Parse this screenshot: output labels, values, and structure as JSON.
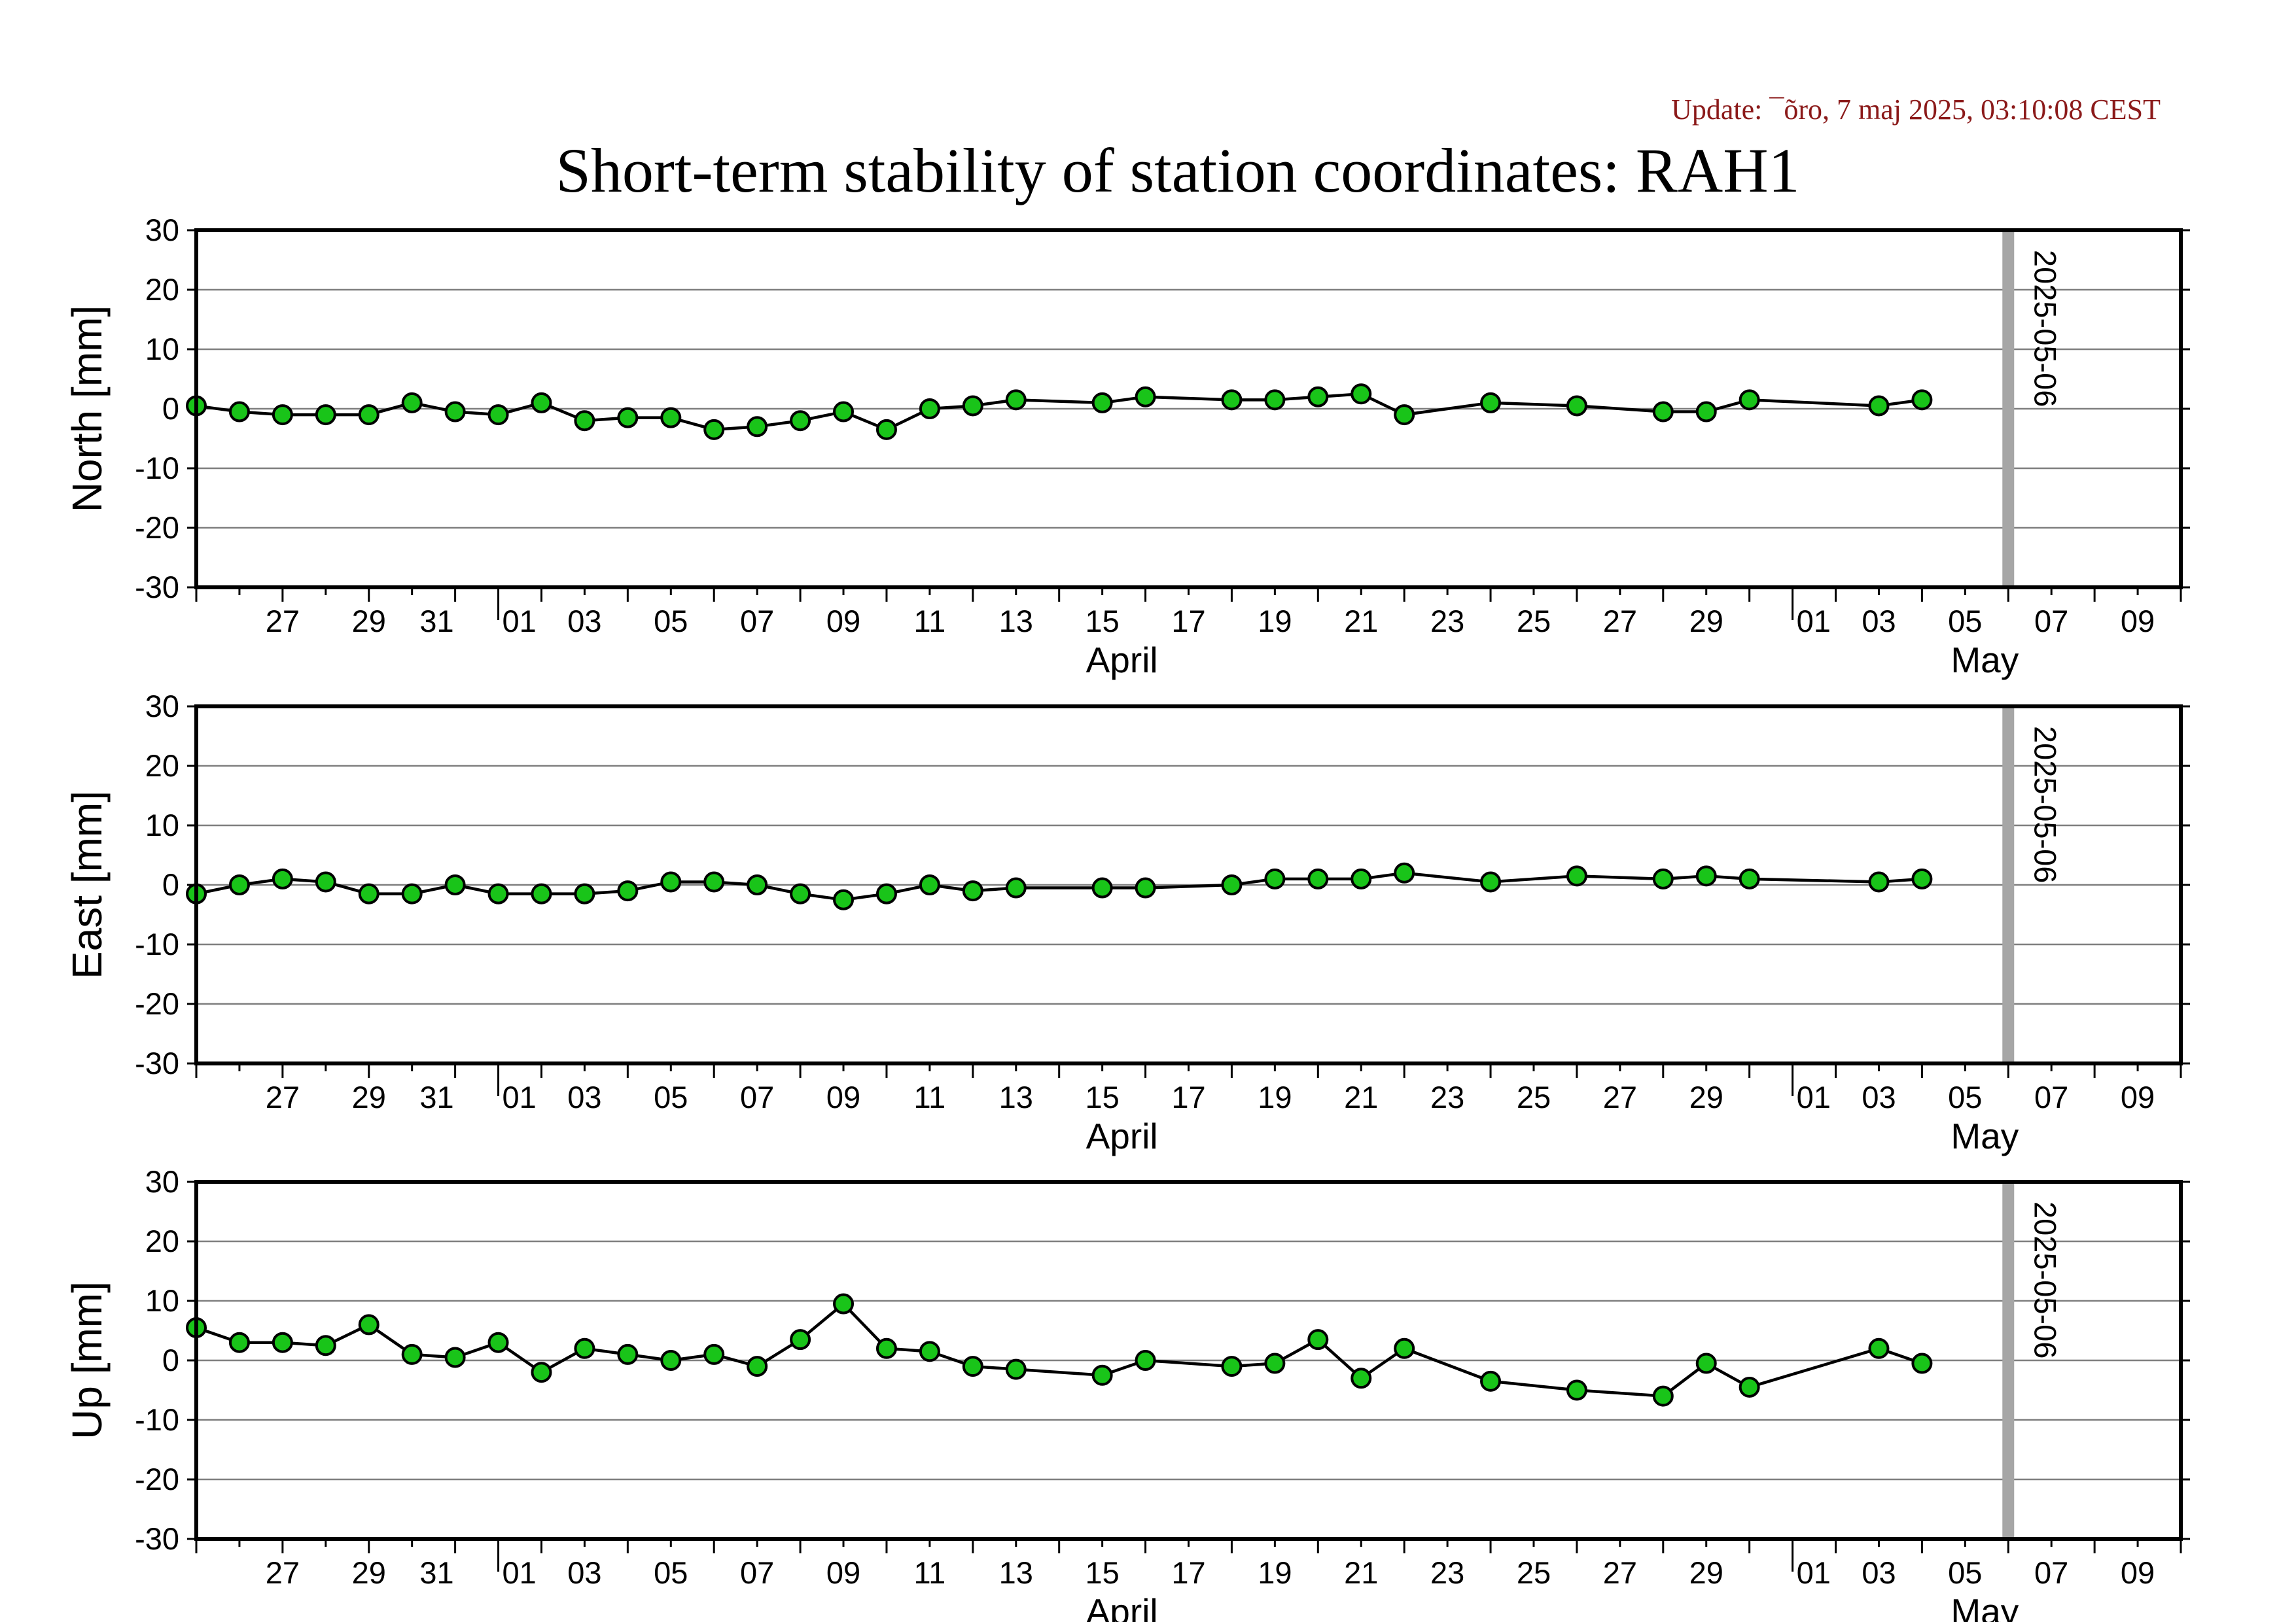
{
  "update_text": "Update: ¯õro, 7 maj 2025, 03:10:08 CEST",
  "title": "Short-term stability of station coordinates: RAH1",
  "colors": {
    "marker_fill": "#19c419",
    "marker_stroke": "#000000",
    "line": "#000000",
    "grid": "#7f7f7f",
    "reference_line": "#a6a6a6",
    "update_text": "#8b1a1a"
  },
  "chart_data": [
    {
      "type": "line",
      "ylabel": "North [mm]",
      "ylim": [
        -30,
        30
      ],
      "yticks": [
        30,
        20,
        10,
        0,
        -10,
        -20,
        -30
      ],
      "xlim": [
        "2025-03-25",
        "2025-05-10"
      ],
      "x_tick_labels": [
        "27",
        "29",
        "31",
        "01",
        "03",
        "05",
        "07",
        "09",
        "11",
        "13",
        "15",
        "17",
        "19",
        "21",
        "23",
        "25",
        "27",
        "29",
        "01",
        "03",
        "05",
        "07",
        "09"
      ],
      "month_labels": [
        "April",
        "May"
      ],
      "reference_line": {
        "date": "2025-05-06",
        "label": "2025-05-06"
      },
      "grid": true,
      "series": [
        {
          "x": [
            "2025-03-25",
            "2025-03-26",
            "2025-03-27",
            "2025-03-28",
            "2025-03-29",
            "2025-03-30",
            "2025-03-31",
            "2025-04-01",
            "2025-04-02",
            "2025-04-03",
            "2025-04-04",
            "2025-04-05",
            "2025-04-06",
            "2025-04-07",
            "2025-04-08",
            "2025-04-09",
            "2025-04-10",
            "2025-04-11",
            "2025-04-12",
            "2025-04-13",
            "2025-04-15",
            "2025-04-16",
            "2025-04-18",
            "2025-04-19",
            "2025-04-20",
            "2025-04-21",
            "2025-04-22",
            "2025-04-24",
            "2025-04-26",
            "2025-04-28",
            "2025-04-29",
            "2025-04-30",
            "2025-05-03",
            "2025-05-04"
          ],
          "values": [
            0.5,
            -0.5,
            -1.0,
            -1.0,
            -1.0,
            1.0,
            -0.5,
            -1.0,
            1.0,
            -2.0,
            -1.5,
            -1.5,
            -3.5,
            -3.0,
            -2.0,
            -0.5,
            -3.5,
            0.0,
            0.5,
            1.5,
            1.0,
            2.0,
            1.5,
            1.5,
            2.0,
            2.5,
            -1.0,
            1.0,
            0.5,
            -0.5,
            -0.5,
            1.5,
            0.5,
            1.5
          ]
        }
      ]
    },
    {
      "type": "line",
      "ylabel": "East [mm]",
      "ylim": [
        -30,
        30
      ],
      "yticks": [
        30,
        20,
        10,
        0,
        -10,
        -20,
        -30
      ],
      "xlim": [
        "2025-03-25",
        "2025-05-10"
      ],
      "x_tick_labels": [
        "27",
        "29",
        "31",
        "01",
        "03",
        "05",
        "07",
        "09",
        "11",
        "13",
        "15",
        "17",
        "19",
        "21",
        "23",
        "25",
        "27",
        "29",
        "01",
        "03",
        "05",
        "07",
        "09"
      ],
      "month_labels": [
        "April",
        "May"
      ],
      "reference_line": {
        "date": "2025-05-06",
        "label": "2025-05-06"
      },
      "grid": true,
      "series": [
        {
          "x": [
            "2025-03-25",
            "2025-03-26",
            "2025-03-27",
            "2025-03-28",
            "2025-03-29",
            "2025-03-30",
            "2025-03-31",
            "2025-04-01",
            "2025-04-02",
            "2025-04-03",
            "2025-04-04",
            "2025-04-05",
            "2025-04-06",
            "2025-04-07",
            "2025-04-08",
            "2025-04-09",
            "2025-04-10",
            "2025-04-11",
            "2025-04-12",
            "2025-04-13",
            "2025-04-15",
            "2025-04-16",
            "2025-04-18",
            "2025-04-19",
            "2025-04-20",
            "2025-04-21",
            "2025-04-22",
            "2025-04-24",
            "2025-04-26",
            "2025-04-28",
            "2025-04-29",
            "2025-04-30",
            "2025-05-03",
            "2025-05-04"
          ],
          "values": [
            -1.5,
            0.0,
            1.0,
            0.5,
            -1.5,
            -1.5,
            0.0,
            -1.5,
            -1.5,
            -1.5,
            -1.0,
            0.5,
            0.5,
            0.0,
            -1.5,
            -2.5,
            -1.5,
            0.0,
            -1.0,
            -0.5,
            -0.5,
            -0.5,
            0.0,
            1.0,
            1.0,
            1.0,
            2.0,
            0.5,
            1.5,
            1.0,
            1.5,
            1.0,
            0.5,
            1.0
          ]
        }
      ]
    },
    {
      "type": "line",
      "ylabel": "Up [mm]",
      "ylim": [
        -30,
        30
      ],
      "yticks": [
        30,
        20,
        10,
        0,
        -10,
        -20,
        -30
      ],
      "xlim": [
        "2025-03-25",
        "2025-05-10"
      ],
      "x_tick_labels": [
        "27",
        "29",
        "31",
        "01",
        "03",
        "05",
        "07",
        "09",
        "11",
        "13",
        "15",
        "17",
        "19",
        "21",
        "23",
        "25",
        "27",
        "29",
        "01",
        "03",
        "05",
        "07",
        "09"
      ],
      "month_labels": [
        "April",
        "May"
      ],
      "reference_line": {
        "date": "2025-05-06",
        "label": "2025-05-06"
      },
      "grid": true,
      "series": [
        {
          "x": [
            "2025-03-25",
            "2025-03-26",
            "2025-03-27",
            "2025-03-28",
            "2025-03-29",
            "2025-03-30",
            "2025-03-31",
            "2025-04-01",
            "2025-04-02",
            "2025-04-03",
            "2025-04-04",
            "2025-04-05",
            "2025-04-06",
            "2025-04-07",
            "2025-04-08",
            "2025-04-09",
            "2025-04-10",
            "2025-04-11",
            "2025-04-12",
            "2025-04-13",
            "2025-04-15",
            "2025-04-16",
            "2025-04-18",
            "2025-04-19",
            "2025-04-20",
            "2025-04-21",
            "2025-04-22",
            "2025-04-24",
            "2025-04-26",
            "2025-04-28",
            "2025-04-29",
            "2025-04-30",
            "2025-05-03",
            "2025-05-04"
          ],
          "values": [
            5.5,
            3.0,
            3.0,
            2.5,
            6.0,
            1.0,
            0.5,
            3.0,
            -2.0,
            2.0,
            1.0,
            0.0,
            1.0,
            -1.0,
            3.5,
            9.5,
            2.0,
            1.5,
            -1.0,
            -1.5,
            -2.5,
            0.0,
            -1.0,
            -0.5,
            3.5,
            -3.0,
            2.0,
            -3.5,
            -5.0,
            -6.0,
            -0.5,
            -4.5,
            2.0,
            -0.5
          ]
        }
      ]
    }
  ]
}
